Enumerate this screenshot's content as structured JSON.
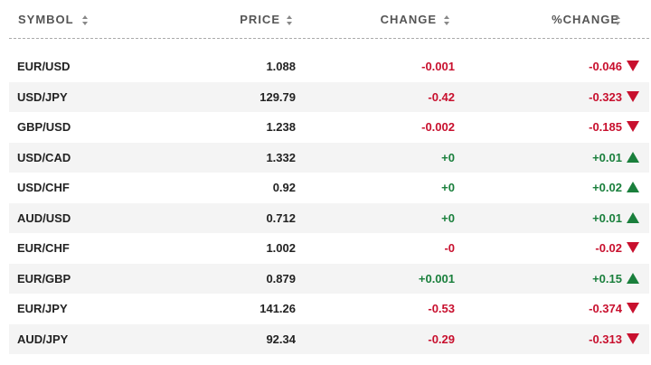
{
  "table": {
    "headers": [
      "SYMBOL",
      "PRICE",
      "CHANGE",
      "%CHANGE"
    ],
    "rows": [
      [
        "EUR/USD",
        "1.088",
        "-0.001",
        "-0.046"
      ],
      [
        "USD/JPY",
        "129.79",
        "-0.42",
        "-0.323"
      ],
      [
        "GBP/USD",
        "1.238",
        "-0.002",
        "-0.185"
      ],
      [
        "USD/CAD",
        "1.332",
        "+0",
        "+0.01"
      ],
      [
        "USD/CHF",
        "0.92",
        "+0",
        "+0.02"
      ],
      [
        "AUD/USD",
        "0.712",
        "+0",
        "+0.01"
      ],
      [
        "EUR/CHF",
        "1.002",
        "-0",
        "-0.02"
      ],
      [
        "EUR/GBP",
        "0.879",
        "+0.001",
        "+0.15"
      ],
      [
        "EUR/JPY",
        "141.26",
        "-0.53",
        "-0.374"
      ],
      [
        "AUD/JPY",
        "92.34",
        "-0.29",
        "-0.313"
      ]
    ]
  }
}
